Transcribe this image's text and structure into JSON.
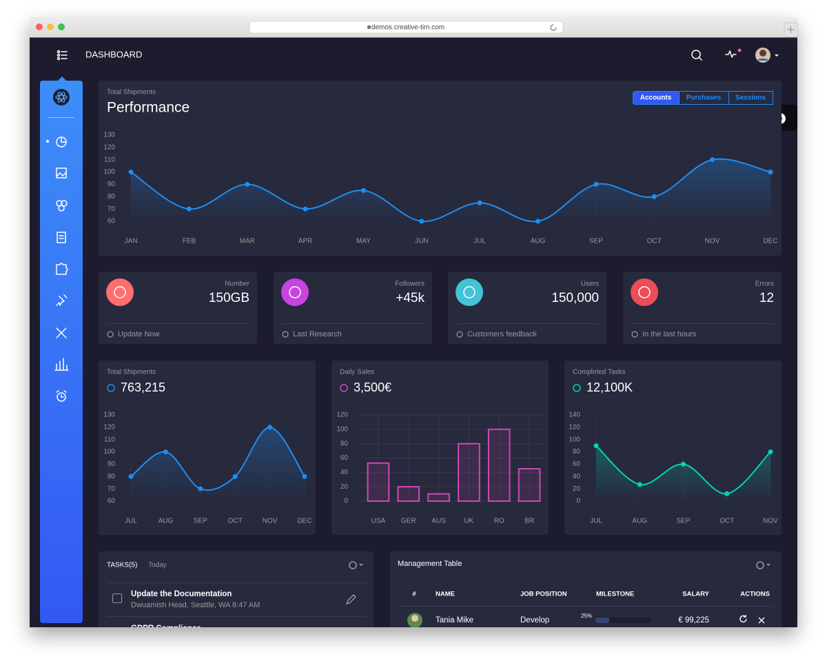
{
  "browser": {
    "url": "demos.creative-tim.com"
  },
  "navbar": {
    "title": "DASHBOARD"
  },
  "performance": {
    "subtitle": "Total Shipments",
    "title": "Performance",
    "tabs": [
      "Accounts",
      "Purchases",
      "Sessions"
    ],
    "chart_data": {
      "type": "line",
      "categories": [
        "JAN",
        "FEB",
        "MAR",
        "APR",
        "MAY",
        "JUN",
        "JUL",
        "AUG",
        "SEP",
        "OCT",
        "NOV",
        "DEC"
      ],
      "values": [
        100,
        70,
        90,
        70,
        85,
        60,
        75,
        60,
        90,
        80,
        110,
        100
      ],
      "color": "#1f8ef1",
      "ylim": [
        60,
        130
      ],
      "yticks": [
        60,
        70,
        80,
        90,
        100,
        110,
        120,
        130
      ],
      "grid": "x"
    }
  },
  "stats": [
    {
      "label": "Number",
      "value": "150GB",
      "footer": "Update Now",
      "color": "#fd6f6f"
    },
    {
      "label": "Followers",
      "value": "+45k",
      "footer": "Last Research",
      "color": "#c843e0"
    },
    {
      "label": "Users",
      "value": "150,000",
      "footer": "Customers feedback",
      "color": "#42c3d6"
    },
    {
      "label": "Errors",
      "value": "12",
      "footer": "In the last hours",
      "color": "#ec4d5a"
    }
  ],
  "charts": [
    {
      "subtitle": "Total Shipments",
      "title": "763,215",
      "chart_data": {
        "type": "line",
        "categories": [
          "JUL",
          "AUG",
          "SEP",
          "OCT",
          "NOV",
          "DEC"
        ],
        "values": [
          80,
          100,
          70,
          80,
          120,
          80
        ],
        "color": "#1f8ef1",
        "ylim": [
          60,
          130
        ],
        "yticks": [
          60,
          70,
          80,
          90,
          100,
          110,
          120,
          130
        ],
        "grid": "x"
      }
    },
    {
      "subtitle": "Daily Sales",
      "title": "3,500€",
      "chart_data": {
        "type": "bar",
        "categories": [
          "USA",
          "GER",
          "AUS",
          "UK",
          "RO",
          "BR"
        ],
        "values": [
          53,
          20,
          10,
          80,
          100,
          45
        ],
        "color": "#d048b6",
        "ylim": [
          0,
          120
        ],
        "yticks": [
          0,
          20,
          40,
          60,
          80,
          100,
          120
        ],
        "grid": "both"
      }
    },
    {
      "subtitle": "Completed Tasks",
      "title": "12,100K",
      "chart_data": {
        "type": "line",
        "categories": [
          "JUL",
          "AUG",
          "SEP",
          "OCT",
          "NOV"
        ],
        "values": [
          90,
          27,
          60,
          12,
          80
        ],
        "color": "#00d6b4",
        "ylim": [
          0,
          140
        ],
        "yticks": [
          0,
          20,
          40,
          60,
          80,
          100,
          120,
          140
        ],
        "grid": "x"
      }
    }
  ],
  "tasks": {
    "title": "TASKS(5)",
    "subtitle": "Today",
    "items": [
      {
        "title": "Update the Documentation",
        "detail": "Dwuamish Head, Seattle, WA 8:47 AM"
      },
      {
        "title": "GDPR Compliance"
      }
    ]
  },
  "table": {
    "title": "Management Table",
    "columns": [
      "#",
      "NAME",
      "JOB POSITION",
      "MILESTONE",
      "SALARY",
      "ACTIONS"
    ],
    "rows": [
      {
        "name": "Tania Mike",
        "position": "Develop",
        "milestone": {
          "value": 25,
          "label": "25%"
        },
        "salary": "€ 99,225"
      }
    ]
  }
}
